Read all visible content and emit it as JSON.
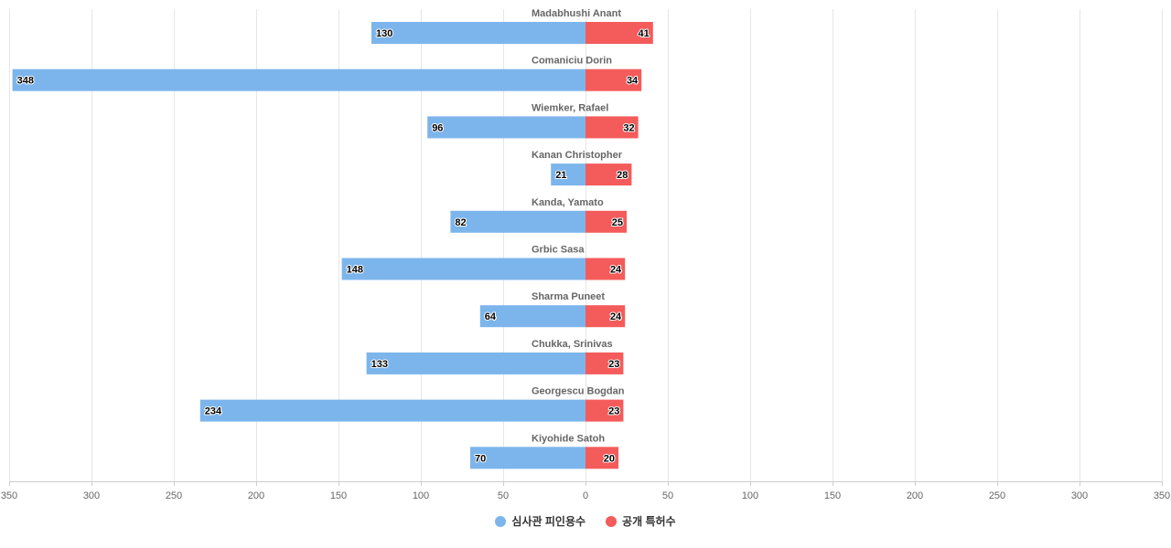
{
  "chart_data": {
    "type": "bar",
    "orientation": "horizontal-diverging",
    "categories": [
      "Madabhushi Anant",
      "Comaniciu Dorin",
      "Wiemker, Rafael",
      "Kanan Christopher",
      "Kanda, Yamato",
      "Grbic Sasa",
      "Sharma Puneet",
      "Chukka, Srinivas",
      "Georgescu Bogdan",
      "Kiyohide Satoh"
    ],
    "series": [
      {
        "name": "심사관 피인용수",
        "color": "#7cb5ec",
        "side": "left",
        "values": [
          130,
          348,
          96,
          21,
          82,
          148,
          64,
          133,
          234,
          70
        ]
      },
      {
        "name": "공개 특허수",
        "color": "#f45b5b",
        "side": "right",
        "values": [
          41,
          34,
          32,
          28,
          25,
          24,
          24,
          23,
          23,
          20
        ]
      }
    ],
    "xlim": [
      -350,
      350
    ],
    "ticks": [
      -350,
      -300,
      -250,
      -200,
      -150,
      -100,
      -50,
      0,
      50,
      100,
      150,
      200,
      250,
      300,
      350
    ],
    "tick_labels": [
      "350",
      "300",
      "250",
      "200",
      "150",
      "100",
      "50",
      "0",
      "50",
      "100",
      "150",
      "200",
      "250",
      "300",
      "350"
    ],
    "grid": true,
    "legend_position": "bottom-center"
  }
}
